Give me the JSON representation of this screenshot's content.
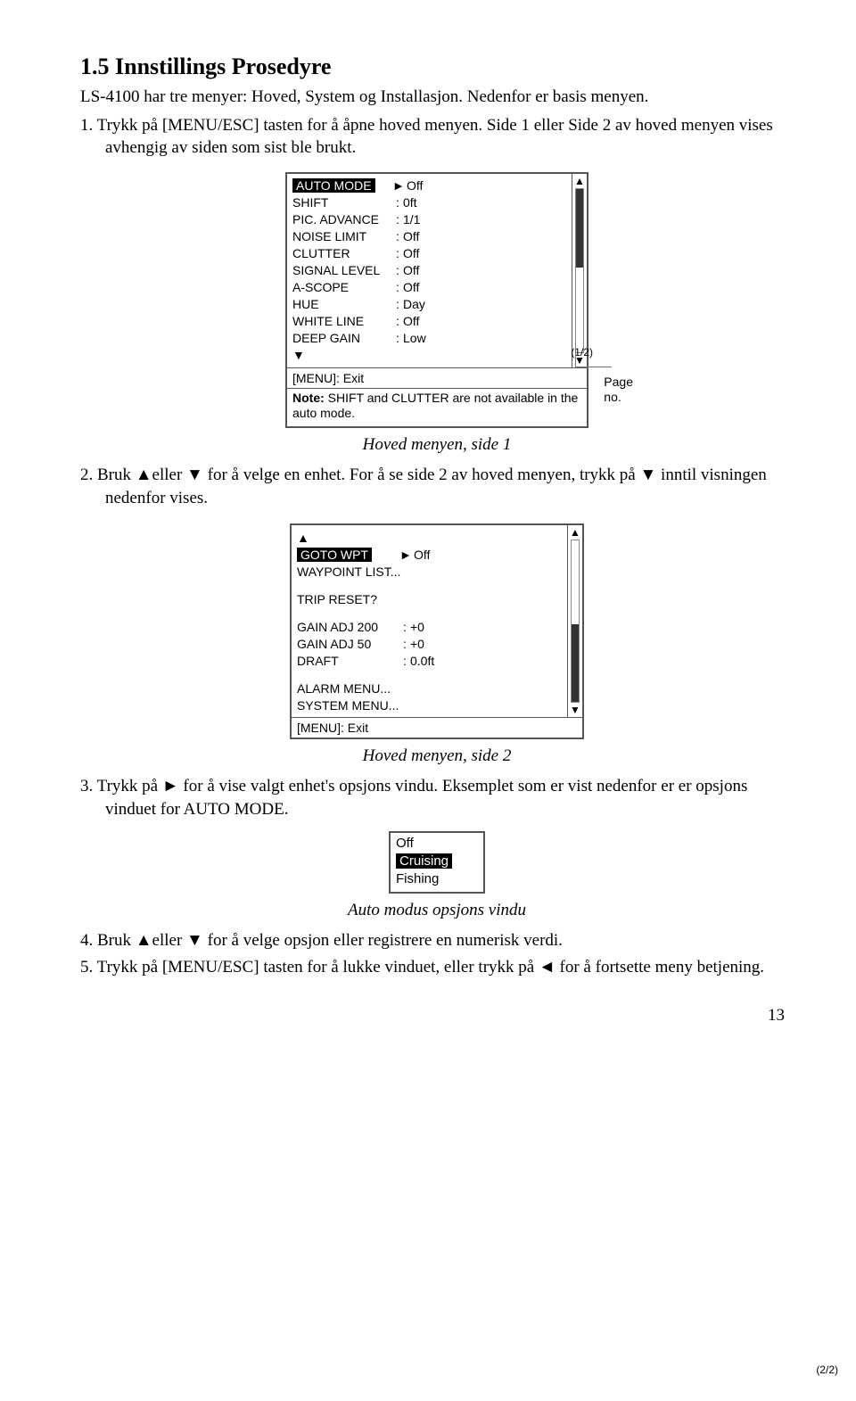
{
  "heading": "1.5   Innstillings Prosedyre",
  "intro": "LS-4100 har tre menyer: Hoved, System og Installasjon. Nedenfor er basis menyen.",
  "step1": "1. Trykk på [MENU/ESC] tasten for å åpne hoved menyen. Side 1 eller Side 2 av hoved menyen vises avhengig av siden som sist ble brukt.",
  "menu1": {
    "rows": [
      {
        "label": "AUTO MODE",
        "value": "Off",
        "selected": true,
        "pointer": "►"
      },
      {
        "label": "SHIFT",
        "colon": ":",
        "value": "0ft"
      },
      {
        "label": "PIC. ADVANCE",
        "colon": ":",
        "value": "1/1"
      },
      {
        "label": "NOISE LIMIT",
        "colon": ":",
        "value": "Off"
      },
      {
        "label": "CLUTTER",
        "colon": ":",
        "value": "Off"
      },
      {
        "label": "SIGNAL LEVEL",
        "colon": ":",
        "value": "Off"
      },
      {
        "label": "A-SCOPE",
        "colon": ":",
        "value": "Off"
      },
      {
        "label": "HUE",
        "colon": ":",
        "value": "Day"
      },
      {
        "label": "WHITE LINE",
        "colon": ":",
        "value": "Off"
      },
      {
        "label": "DEEP GAIN",
        "colon": ":",
        "value": "Low"
      }
    ],
    "down_marker": "▼",
    "up_arrow": "▲",
    "dn_arrow": "▼",
    "page_indicator": "(1/2)",
    "footer": "[MENU]: Exit",
    "note_bold": "Note:",
    "note_text": " SHIFT and CLUTTER are not available in the auto mode.",
    "pageno_label_l1": "Page",
    "pageno_label_l2": "no.",
    "thumb_top_pct": 0,
    "thumb_height_pct": 48
  },
  "caption1": "Hoved menyen, side 1",
  "step2": "2. Bruk ▲eller ▼ for å velge en enhet. For å se side 2 av hoved menyen, trykk på ▼ inntil visningen nedenfor vises.",
  "menu2": {
    "up_marker": "▲",
    "rows_top": [
      {
        "label": "GOTO WPT",
        "selected": true,
        "pointer": "►",
        "value": "Off"
      },
      {
        "label": "WAYPOINT LIST..."
      }
    ],
    "trip_row": {
      "label": "TRIP RESET?"
    },
    "rows_bottom": [
      {
        "label": "GAIN ADJ 200",
        "colon": ":",
        "value": "+0"
      },
      {
        "label": "GAIN ADJ  50",
        "colon": ":",
        "value": "+0"
      },
      {
        "label": "DRAFT",
        "colon": ":",
        "value": "0.0ft"
      }
    ],
    "rows_end": [
      {
        "label": "ALARM MENU..."
      },
      {
        "label": "SYSTEM MENU..."
      }
    ],
    "up_arrow": "▲",
    "dn_arrow": "▼",
    "page_indicator": "(2/2)",
    "footer": "[MENU]: Exit",
    "thumb_top_pct": 52,
    "thumb_height_pct": 48
  },
  "caption2": "Hoved menyen, side 2",
  "step3": "3. Trykk på ► for å vise valgt enhet's opsjons vindu. Eksemplet som er vist nedenfor er er opsjons vinduet for AUTO MODE.",
  "options": {
    "items": [
      "Off",
      "Cruising",
      "Fishing"
    ],
    "selected_index": 1
  },
  "caption3": "Auto modus opsjons vindu",
  "step4": "4. Bruk ▲eller ▼ for å velge opsjon eller registrere en numerisk verdi.",
  "step5": "5. Trykk på [MENU/ESC] tasten for å lukke vinduet, eller trykk på ◄ for å fortsette meny betjening.",
  "page_number": "13"
}
